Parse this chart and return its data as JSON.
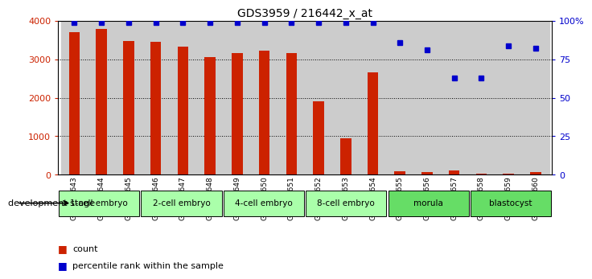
{
  "title": "GDS3959 / 216442_x_at",
  "samples": [
    "GSM456643",
    "GSM456644",
    "GSM456645",
    "GSM456646",
    "GSM456647",
    "GSM456648",
    "GSM456649",
    "GSM456650",
    "GSM456651",
    "GSM456652",
    "GSM456653",
    "GSM456654",
    "GSM456655",
    "GSM456656",
    "GSM456657",
    "GSM456658",
    "GSM456659",
    "GSM456660"
  ],
  "counts": [
    3700,
    3800,
    3470,
    3460,
    3340,
    3050,
    3170,
    3220,
    3170,
    1900,
    950,
    2660,
    90,
    60,
    100,
    30,
    30,
    60
  ],
  "percentiles": [
    99,
    99,
    99,
    99,
    99,
    99,
    99,
    99,
    99,
    99,
    99,
    99,
    86,
    81,
    63,
    63,
    84,
    82
  ],
  "stages": [
    {
      "label": "1-cell embryo",
      "start": 0,
      "end": 3
    },
    {
      "label": "2-cell embryo",
      "start": 3,
      "end": 6
    },
    {
      "label": "4-cell embryo",
      "start": 6,
      "end": 9
    },
    {
      "label": "8-cell embryo",
      "start": 9,
      "end": 12
    },
    {
      "label": "morula",
      "start": 12,
      "end": 15
    },
    {
      "label": "blastocyst",
      "start": 15,
      "end": 18
    }
  ],
  "stage_colors": [
    "#aaffaa",
    "#aaffaa",
    "#aaffaa",
    "#aaffaa",
    "#66dd66",
    "#66dd66"
  ],
  "bar_color": "#cc2200",
  "dot_color": "#0000cc",
  "bg_color": "#cccccc",
  "ylim_left": [
    0,
    4000
  ],
  "ylim_right": [
    0,
    100
  ],
  "yticks_left": [
    0,
    1000,
    2000,
    3000,
    4000
  ],
  "ytick_labels_left": [
    "0",
    "1000",
    "2000",
    "3000",
    "4000"
  ],
  "yticks_right": [
    0,
    25,
    50,
    75,
    100
  ],
  "ytick_labels_right": [
    "0",
    "25",
    "50",
    "75",
    "100%"
  ],
  "legend_count_label": "count",
  "legend_pct_label": "percentile rank within the sample",
  "dev_stage_label": "development stage"
}
